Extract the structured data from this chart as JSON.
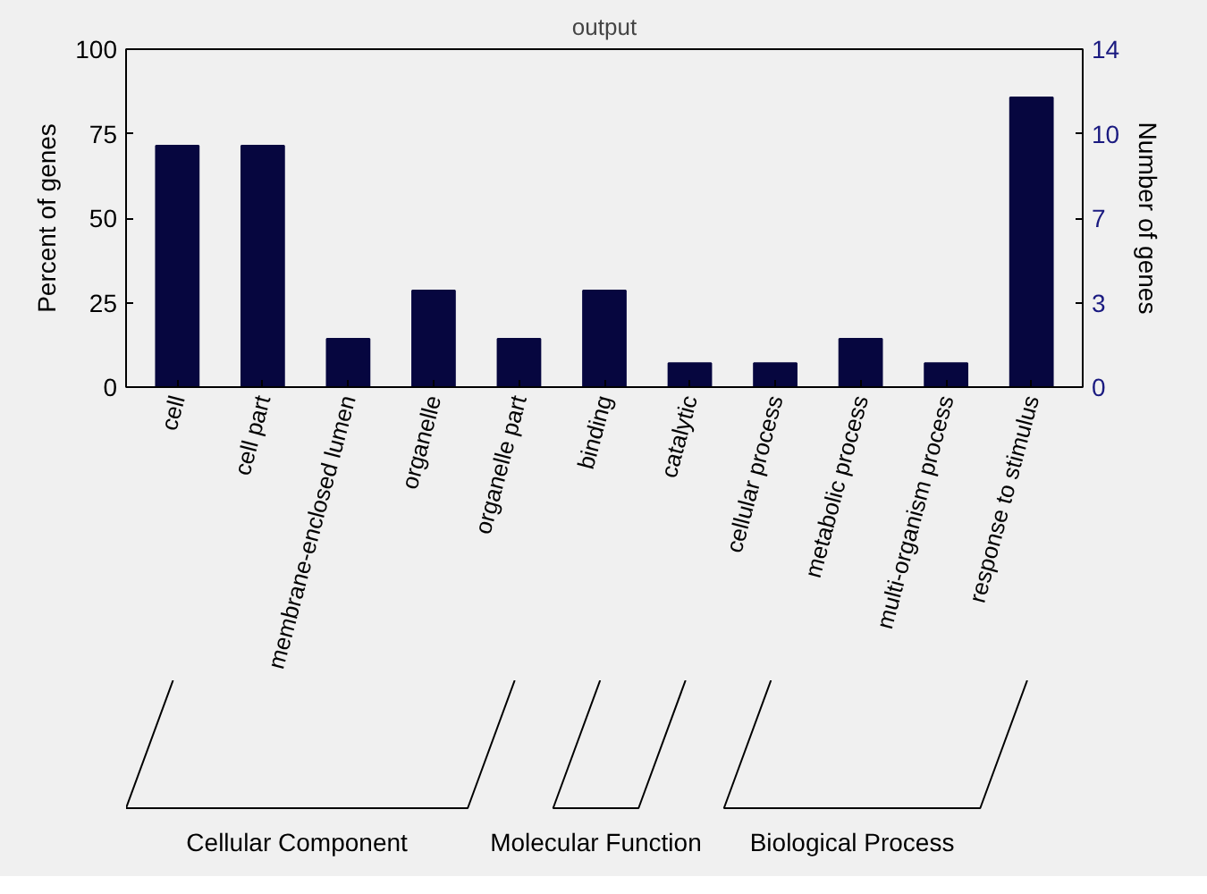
{
  "chart_data": {
    "type": "bar",
    "title": "output",
    "ylabel": "Percent of genes",
    "y2label": "Number of genes",
    "categories": [
      "cell",
      "cell part",
      "membrane-enclosed lumen",
      "organelle",
      "organelle part",
      "binding",
      "catalytic",
      "cellular process",
      "metabolic process",
      "multi-organism process",
      "response to stimulus"
    ],
    "values": [
      71.4,
      71.4,
      14.3,
      28.6,
      14.3,
      28.6,
      7.1,
      7.1,
      14.3,
      7.1,
      85.7
    ],
    "color": "#06063f",
    "ylim": [
      0,
      100
    ],
    "yticks": [
      0,
      25,
      50,
      75,
      100
    ],
    "y2lim": [
      0,
      14
    ],
    "y2ticks": [
      0,
      {
        "value": 3.5,
        "label": "3"
      },
      7,
      {
        "value": 10.5,
        "label": "10"
      },
      14
    ],
    "annotations": [
      "Cellular Component",
      "Molecular Function",
      "Biological Process"
    ],
    "grid": false
  }
}
